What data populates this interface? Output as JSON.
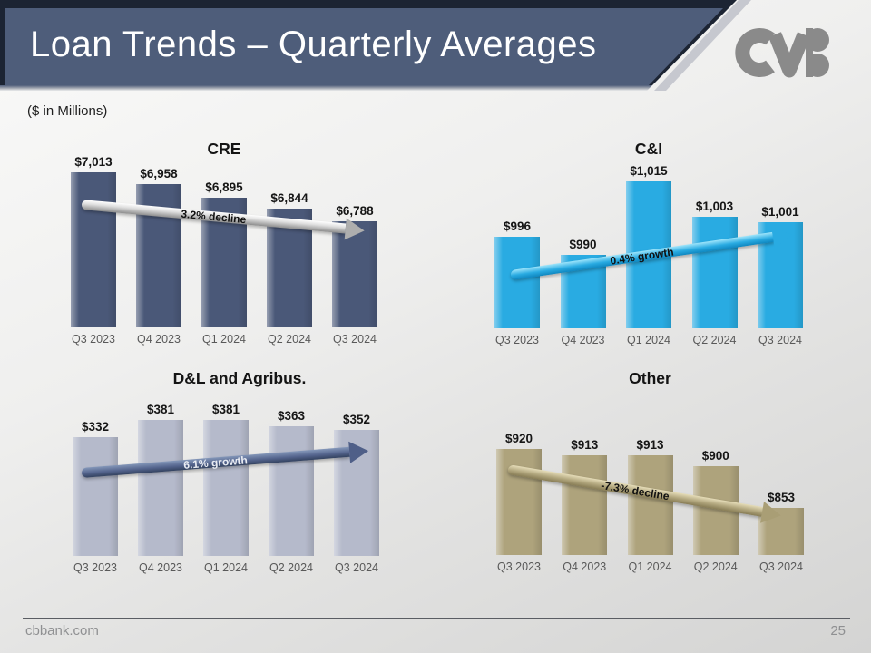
{
  "slide": {
    "title": "Loan Trends – Quarterly Averages",
    "units_note": "($ in Millions)",
    "footer": {
      "website": "cbbank.com",
      "page_number": "25"
    },
    "logo": "CVB"
  },
  "colors": {
    "banner": "#4e5d7a",
    "banner_edge": "#1c2433",
    "cre_bars": "#4a5878",
    "ci_bars": "#29abe2",
    "dl_bars": "#b5bacb",
    "other_bars": "#aea37c",
    "trend_silver": "#aeaeae",
    "trend_blue": "#29abe2",
    "trend_navy": "#51618a",
    "trend_tan": "#b0a57c",
    "value_label_text": "#161616",
    "category_label_text": "#595959"
  },
  "chart_data": [
    {
      "type": "bar",
      "title": "CRE",
      "categories": [
        "Q3 2023",
        "Q4 2023",
        "Q1 2024",
        "Q2 2024",
        "Q3 2024"
      ],
      "values": [
        7013,
        6958,
        6895,
        6844,
        6788
      ],
      "value_labels": [
        "$7,013",
        "$6,958",
        "$6,895",
        "$6,844",
        "$6,788"
      ],
      "ylim": [
        6300,
        7040
      ],
      "grid": false,
      "legend": false,
      "bar_color": "#4a5878",
      "trend": {
        "label": "3.2% decline",
        "direction": "down"
      }
    },
    {
      "type": "bar",
      "title": "C&I",
      "categories": [
        "Q3 2023",
        "Q4 2023",
        "Q1 2024",
        "Q2 2024",
        "Q3 2024"
      ],
      "values": [
        996,
        990,
        1015,
        1003,
        1001
      ],
      "value_labels": [
        "$996",
        "$990",
        "$1,015",
        "$1,003",
        "$1,001"
      ],
      "ylim": [
        965,
        1018
      ],
      "grid": false,
      "legend": false,
      "bar_color": "#29abe2",
      "trend": {
        "label": "0.4% growth",
        "direction": "up"
      }
    },
    {
      "type": "bar",
      "title": "D&L and Agribus.",
      "categories": [
        "Q3 2023",
        "Q4 2023",
        "Q1 2024",
        "Q2 2024",
        "Q3 2024"
      ],
      "values": [
        332,
        381,
        381,
        363,
        352
      ],
      "value_labels": [
        "$332",
        "$381",
        "$381",
        "$363",
        "$352"
      ],
      "ylim": [
        0,
        400
      ],
      "grid": false,
      "legend": false,
      "bar_color": "#b5bacb",
      "trend": {
        "label": "6.1% growth",
        "direction": "up"
      }
    },
    {
      "type": "bar",
      "title": "Other",
      "categories": [
        "Q3 2023",
        "Q4 2023",
        "Q1 2024",
        "Q2 2024",
        "Q3 2024"
      ],
      "values": [
        920,
        913,
        913,
        900,
        853
      ],
      "value_labels": [
        "$920",
        "$913",
        "$913",
        "$900",
        "$853"
      ],
      "ylim": [
        800,
        930
      ],
      "grid": false,
      "legend": false,
      "bar_color": "#aea37c",
      "trend": {
        "label": "-7.3% decline",
        "direction": "down"
      }
    }
  ]
}
